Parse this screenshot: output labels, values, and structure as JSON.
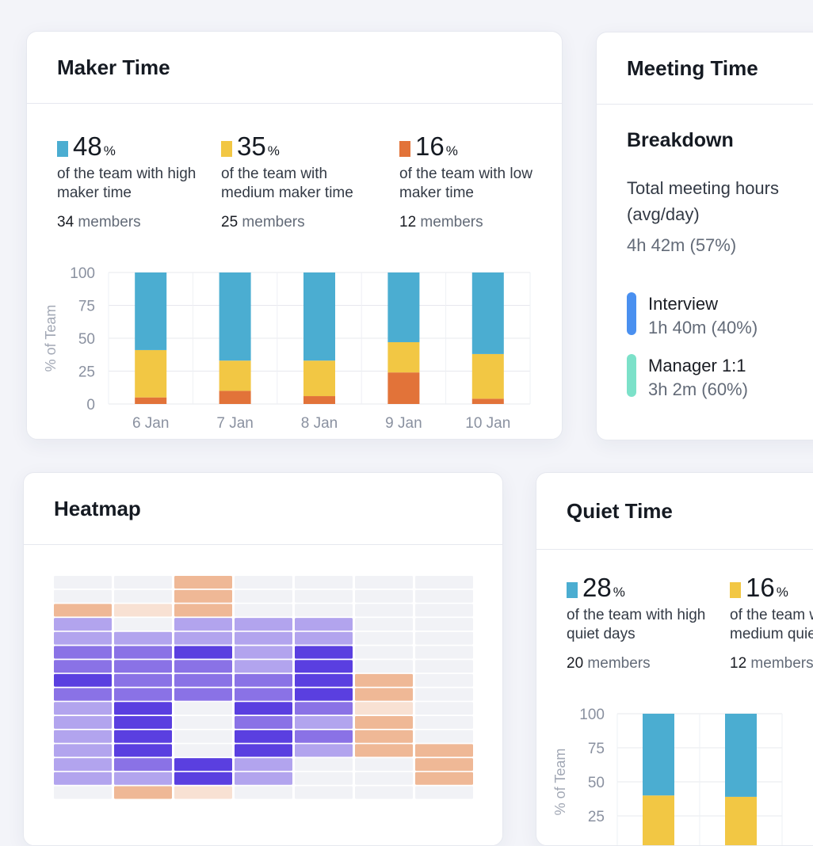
{
  "maker": {
    "title": "Maker Time",
    "stats": [
      {
        "pct": "48",
        "unit": "%",
        "desc": "of the team with high maker time",
        "count": "34",
        "count_label": "members",
        "color": "#4badd1"
      },
      {
        "pct": "35",
        "unit": "%",
        "desc": "of the team with medium maker time",
        "count": "25",
        "count_label": "members",
        "color": "#f2c744"
      },
      {
        "pct": "16",
        "unit": "%",
        "desc": "of the team with low maker time",
        "count": "12",
        "count_label": "members",
        "color": "#e27339"
      }
    ]
  },
  "meeting": {
    "title": "Meeting Time",
    "subtitle": "Breakdown",
    "total_label": "Total meeting hours (avg/day)",
    "total_value": "4h 42m (57%)",
    "items": [
      {
        "label": "Interview",
        "value": "1h 40m (40%)",
        "color": "#4a90f0"
      },
      {
        "label": "Manager 1:1",
        "value": "3h 2m (60%)",
        "color": "#7ce1c9"
      }
    ]
  },
  "heatmap": {
    "title": "Heatmap",
    "palette": [
      "#f1f2f6",
      "#f1f2f6",
      "#f8e1d3",
      "#efb896",
      "#b2a4ee",
      "#8a72e6",
      "#5a3fe0"
    ],
    "grid": [
      [
        0,
        0,
        3,
        0,
        0,
        0,
        0
      ],
      [
        0,
        0,
        3,
        0,
        0,
        0,
        0
      ],
      [
        3,
        2,
        3,
        0,
        0,
        0,
        0
      ],
      [
        4,
        0,
        4,
        4,
        4,
        0,
        0
      ],
      [
        4,
        4,
        4,
        4,
        4,
        0,
        0
      ],
      [
        5,
        5,
        6,
        4,
        6,
        0,
        0
      ],
      [
        5,
        5,
        5,
        4,
        6,
        0,
        0
      ],
      [
        6,
        5,
        5,
        5,
        6,
        3,
        0
      ],
      [
        5,
        5,
        5,
        5,
        6,
        3,
        0
      ],
      [
        4,
        6,
        0,
        6,
        5,
        2,
        0
      ],
      [
        4,
        6,
        0,
        5,
        4,
        3,
        0
      ],
      [
        4,
        6,
        0,
        6,
        5,
        3,
        0
      ],
      [
        4,
        6,
        0,
        6,
        4,
        3,
        3
      ],
      [
        4,
        5,
        6,
        4,
        0,
        0,
        3
      ],
      [
        4,
        4,
        6,
        4,
        0,
        0,
        3
      ],
      [
        0,
        3,
        2,
        0,
        0,
        0,
        0
      ]
    ]
  },
  "quiet": {
    "title": "Quiet Time",
    "stats": [
      {
        "pct": "28",
        "unit": "%",
        "desc": "of the team with high quiet days",
        "count": "20",
        "count_label": "members",
        "color": "#4badd1"
      },
      {
        "pct": "16",
        "unit": "%",
        "desc": "of the team with medium quiet days",
        "count": "12",
        "count_label": "members",
        "color": "#f2c744"
      }
    ]
  },
  "chart_data": [
    {
      "type": "bar",
      "stacked": true,
      "title": "Maker Time",
      "ylabel": "% of Team",
      "xlabel": "",
      "ylim": [
        0,
        100
      ],
      "yticks": [
        0,
        25,
        50,
        75,
        100
      ],
      "categories": [
        "6 Jan",
        "7 Jan",
        "8 Jan",
        "9 Jan",
        "10 Jan"
      ],
      "series": [
        {
          "name": "low maker time",
          "color": "#e27339",
          "values": [
            5,
            10,
            6,
            24,
            4
          ]
        },
        {
          "name": "medium maker time",
          "color": "#f2c744",
          "values": [
            36,
            23,
            27,
            23,
            34
          ]
        },
        {
          "name": "high maker time",
          "color": "#4badd1",
          "values": [
            59,
            67,
            67,
            53,
            62
          ]
        }
      ]
    },
    {
      "type": "bar",
      "stacked": true,
      "title": "Quiet Time",
      "ylabel": "% of Team",
      "xlabel": "",
      "ylim": [
        0,
        100
      ],
      "yticks": [
        25,
        50,
        75,
        100
      ],
      "categories": [
        "",
        ""
      ],
      "series": [
        {
          "name": "medium quiet days",
          "color": "#f2c744",
          "values": [
            40,
            39
          ]
        },
        {
          "name": "high quiet days",
          "color": "#4badd1",
          "values": [
            60,
            61
          ]
        }
      ]
    }
  ]
}
